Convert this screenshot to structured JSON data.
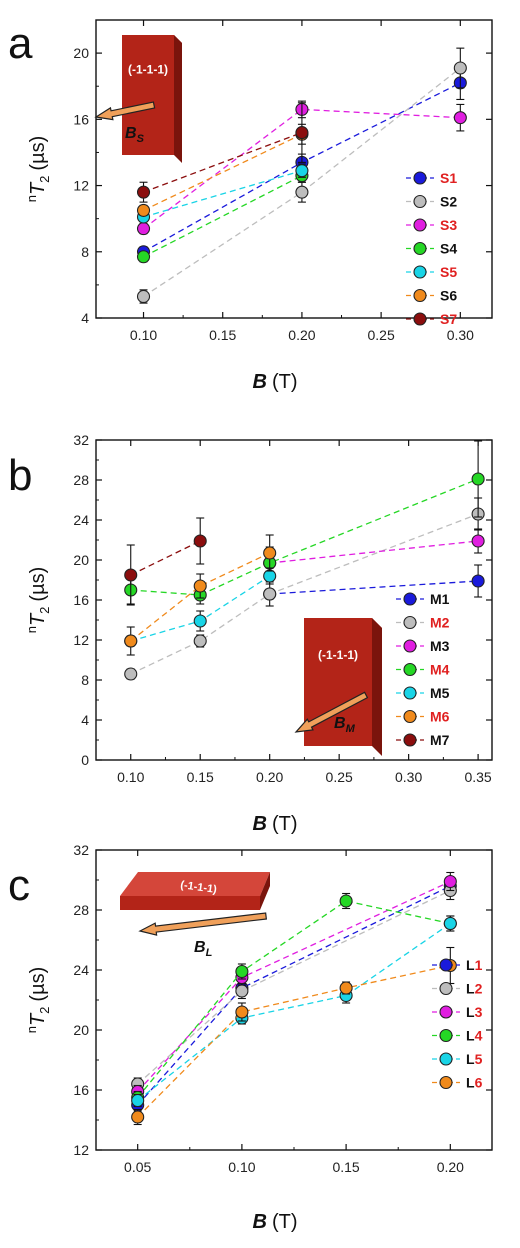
{
  "chart_data": [
    {
      "type": "scatter",
      "panel_letter": "a",
      "xlabel_main": "B",
      "xlabel_unit": "(T)",
      "ylabel_pre": "n",
      "ylabel_main": "T",
      "ylabel_sub": "2",
      "ylabel_unit": "(µs)",
      "xlim": [
        0.07,
        0.32
      ],
      "ylim": [
        4,
        22
      ],
      "xticks": [
        "0.10",
        "0.15",
        "0.20",
        "0.25",
        "0.30"
      ],
      "yticks": [
        "4",
        "8",
        "12",
        "16",
        "20"
      ],
      "grid": false,
      "legend": "right",
      "inset": {
        "plane": "(-1-1-1)",
        "field_main": "B",
        "field_sub": "S"
      },
      "series": [
        {
          "name": "S1",
          "label_highlight": true,
          "color": "#1a1adb",
          "x": [
            0.1,
            0.2,
            0.3
          ],
          "y": [
            8.0,
            13.4,
            18.2
          ],
          "err": [
            0.3,
            0.5,
            1.0
          ]
        },
        {
          "name": "S2",
          "label_highlight": false,
          "color": "#bdbdbd",
          "x": [
            0.1,
            0.2,
            0.3
          ],
          "y": [
            5.3,
            11.6,
            19.1
          ],
          "err": [
            0.4,
            0.6,
            1.2
          ]
        },
        {
          "name": "S3",
          "label_highlight": true,
          "color": "#e01ee0",
          "x": [
            0.1,
            0.2,
            0.3
          ],
          "y": [
            9.4,
            16.6,
            16.1
          ],
          "err": [
            0.3,
            0.5,
            0.8
          ]
        },
        {
          "name": "S4",
          "label_highlight": false,
          "color": "#25d725",
          "x": [
            0.1,
            0.2
          ],
          "y": [
            7.7,
            12.6
          ],
          "err": [
            0.3,
            0.4
          ]
        },
        {
          "name": "S5",
          "label_highlight": true,
          "color": "#19d4e6",
          "x": [
            0.1,
            0.2
          ],
          "y": [
            10.1,
            12.9
          ],
          "err": [
            0.3,
            0.4
          ]
        },
        {
          "name": "S6",
          "label_highlight": false,
          "color": "#f08a1c",
          "x": [
            0.1,
            0.2
          ],
          "y": [
            10.5,
            15.1
          ],
          "err": [
            0.3,
            0.6
          ]
        },
        {
          "name": "S7",
          "label_highlight": true,
          "color": "#8b0e0e",
          "x": [
            0.1,
            0.2
          ],
          "y": [
            11.6,
            15.2
          ],
          "err": [
            0.6,
            1.8
          ]
        }
      ]
    },
    {
      "type": "scatter",
      "panel_letter": "b",
      "xlabel_main": "B",
      "xlabel_unit": "(T)",
      "ylabel_pre": "n",
      "ylabel_main": "T",
      "ylabel_sub": "2",
      "ylabel_unit": "(µs)",
      "xlim": [
        0.075,
        0.36
      ],
      "ylim": [
        0,
        32
      ],
      "xticks": [
        "0.10",
        "0.15",
        "0.20",
        "0.25",
        "0.30",
        "0.35"
      ],
      "yticks": [
        "0",
        "4",
        "8",
        "12",
        "16",
        "20",
        "24",
        "28",
        "32"
      ],
      "grid": false,
      "legend": "right",
      "inset": {
        "plane": "(-1-1-1)",
        "field_main": "B",
        "field_sub": "M"
      },
      "series": [
        {
          "name": "M1",
          "label_highlight": false,
          "color": "#1a1adb",
          "x": [
            0.2,
            0.35
          ],
          "y": [
            16.6,
            17.9
          ],
          "err": [
            0.5,
            1.6
          ]
        },
        {
          "name": "M2",
          "label_highlight": true,
          "color": "#bdbdbd",
          "x": [
            0.1,
            0.15,
            0.2,
            0.35
          ],
          "y": [
            8.6,
            11.9,
            16.6,
            24.6
          ],
          "err": [
            0.5,
            0.6,
            1.2,
            1.6
          ]
        },
        {
          "name": "M3",
          "label_highlight": false,
          "color": "#e01ee0",
          "x": [
            0.2,
            0.35
          ],
          "y": [
            19.7,
            21.9
          ],
          "err": [
            0.5,
            1.2
          ]
        },
        {
          "name": "M4",
          "label_highlight": true,
          "color": "#25d725",
          "x": [
            0.1,
            0.15,
            0.2,
            0.35
          ],
          "y": [
            17.0,
            16.5,
            19.7,
            28.1
          ],
          "err": [
            1.4,
            0.9,
            1.6,
            3.8
          ]
        },
        {
          "name": "M5",
          "label_highlight": false,
          "color": "#19d4e6",
          "x": [
            0.1,
            0.15,
            0.2
          ],
          "y": [
            11.9,
            13.9,
            18.4
          ],
          "err": [
            0.5,
            1.0,
            0.8
          ]
        },
        {
          "name": "M6",
          "label_highlight": true,
          "color": "#f08a1c",
          "x": [
            0.1,
            0.15,
            0.2
          ],
          "y": [
            11.9,
            17.4,
            20.7
          ],
          "err": [
            1.4,
            1.2,
            1.8
          ]
        },
        {
          "name": "M7",
          "label_highlight": false,
          "color": "#8b0e0e",
          "x": [
            0.1,
            0.15
          ],
          "y": [
            18.5,
            21.9
          ],
          "err": [
            3.0,
            2.3
          ]
        }
      ]
    },
    {
      "type": "scatter",
      "panel_letter": "c",
      "xlabel_main": "B",
      "xlabel_unit": "(T)",
      "ylabel_pre": "n",
      "ylabel_main": "T",
      "ylabel_sub": "2",
      "ylabel_unit": "(µs)",
      "xlim": [
        0.03,
        0.22
      ],
      "ylim": [
        12,
        32
      ],
      "xticks": [
        "0.05",
        "0.10",
        "0.15",
        "0.20"
      ],
      "yticks": [
        "12",
        "16",
        "20",
        "24",
        "28",
        "32"
      ],
      "grid": false,
      "legend": "right",
      "inset": {
        "plane": "(-1-1-1)",
        "field_main": "B",
        "field_sub": "L"
      },
      "series": [
        {
          "name": "L1",
          "name_prefix": "L",
          "name_suffix": "1",
          "color": "#1a1adb",
          "x": [
            0.05,
            0.1,
            0.2
          ],
          "y": [
            15.0,
            22.8,
            29.6
          ],
          "err": [
            0.4,
            0.5,
            0.6
          ]
        },
        {
          "name": "L2",
          "name_prefix": "L",
          "name_suffix": "2",
          "color": "#bdbdbd",
          "x": [
            0.05,
            0.1,
            0.2
          ],
          "y": [
            16.4,
            22.6,
            29.3
          ],
          "err": [
            0.4,
            0.5,
            0.6
          ]
        },
        {
          "name": "L3",
          "name_prefix": "L",
          "name_suffix": "3",
          "color": "#e01ee0",
          "x": [
            0.05,
            0.1,
            0.2
          ],
          "y": [
            15.9,
            23.5,
            29.9
          ],
          "err": [
            0.4,
            0.5,
            0.6
          ]
        },
        {
          "name": "L4",
          "name_prefix": "L",
          "name_suffix": "4",
          "color": "#25d725",
          "x": [
            0.05,
            0.1,
            0.15,
            0.2
          ],
          "y": [
            15.5,
            23.9,
            28.6,
            27.1
          ],
          "err": [
            0.4,
            0.5,
            0.5,
            0.5
          ]
        },
        {
          "name": "L5",
          "name_prefix": "L",
          "name_suffix": "5",
          "color": "#19d4e6",
          "x": [
            0.05,
            0.1,
            0.15,
            0.2
          ],
          "y": [
            15.3,
            20.8,
            22.3,
            27.1
          ],
          "err": [
            0.4,
            0.4,
            0.5,
            0.5
          ]
        },
        {
          "name": "L6",
          "name_prefix": "L",
          "name_suffix": "6",
          "color": "#f08a1c",
          "x": [
            0.05,
            0.1,
            0.15,
            0.2
          ],
          "y": [
            14.2,
            21.2,
            22.8,
            24.3
          ],
          "err": [
            0.5,
            0.6,
            0.4,
            1.2
          ]
        }
      ]
    }
  ],
  "style": {
    "highlight_color": "#e02020",
    "text_color": "#111111",
    "slab_front": "#b32418",
    "slab_side": "#7a140c",
    "slab_top": "#d4463a",
    "arrow_fill": "#f0a05a",
    "arrow_stroke": "#222222"
  }
}
